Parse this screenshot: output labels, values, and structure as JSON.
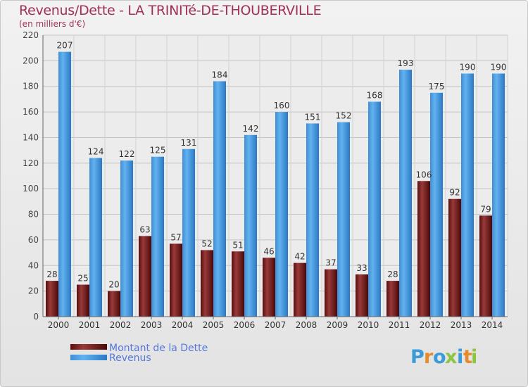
{
  "chart_data": {
    "type": "bar",
    "title": "Revenus/Dette - LA TRINITé-DE-THOUBERVILLE",
    "subtitle": "(en milliers d'€)",
    "categories": [
      "2000",
      "2001",
      "2002",
      "2003",
      "2004",
      "2005",
      "2006",
      "2007",
      "2008",
      "2009",
      "2010",
      "2011",
      "2012",
      "2013",
      "2014"
    ],
    "series": [
      {
        "name": "Montant de la Dette",
        "color": "#7a1c1c",
        "values": [
          28,
          25,
          20,
          63,
          57,
          52,
          51,
          46,
          42,
          37,
          33,
          28,
          106,
          92,
          79
        ]
      },
      {
        "name": "Revenus",
        "color": "#3d8fd8",
        "values": [
          207,
          124,
          122,
          125,
          131,
          184,
          142,
          160,
          151,
          152,
          168,
          193,
          175,
          190,
          190
        ]
      }
    ],
    "ylim": [
      0,
      220
    ],
    "yticks": [
      0,
      20,
      40,
      60,
      80,
      100,
      120,
      140,
      160,
      180,
      200,
      220
    ],
    "grid": true,
    "legend": "bottom-left"
  },
  "logo": {
    "letters": [
      "P",
      "r",
      "o",
      "x",
      "i",
      "t",
      "i"
    ],
    "colors": [
      "#3a9bd8",
      "#e88a2a",
      "#3a9bd8",
      "#8cc63f",
      "#3a9bd8",
      "#e88a2a",
      "#8cc63f"
    ]
  }
}
